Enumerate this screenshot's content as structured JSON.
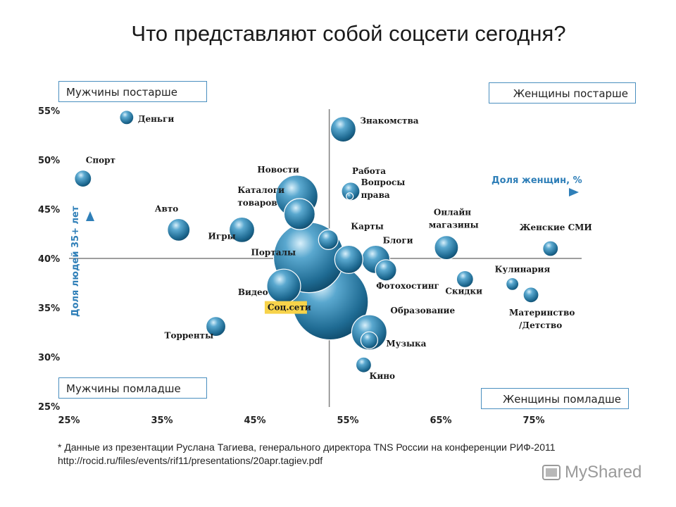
{
  "title": "Что представляют собой соцсети сегодня?",
  "quadrants": {
    "top_left": "Мужчины постарше",
    "top_right": "Женщины постарше",
    "bottom_left": "Мужчины помладше",
    "bottom_right": "Женщины помладше"
  },
  "footnote": "* Данные из презентации Руслана Тагиева, генерального директора TNS России на конференции РИФ-2011  http://rocid.ru/files/events/rif11/presentations/20apr.tagiev.pdf",
  "watermark": "MyShared",
  "chart_data": {
    "type": "scatter",
    "title": "Что представляют собой соцсети сегодня?",
    "xlabel": "Доля женщин, %",
    "ylabel": "Доля людей 35+ лет",
    "xlim": [
      25,
      80
    ],
    "ylim": [
      25,
      55
    ],
    "x_ticks": [
      "25%",
      "35%",
      "45%",
      "55%",
      "65%",
      "75%"
    ],
    "y_ticks": [
      "25%",
      "30%",
      "35%",
      "40%",
      "45%",
      "50%",
      "55%"
    ],
    "crosshair": {
      "x": 53,
      "y": 40
    },
    "colors": {
      "bubble": "#2f7fa6",
      "bubble_dark": "#0f4f70",
      "arrow": "#3a86b8",
      "highlight": "#f7d34a"
    },
    "points": [
      {
        "label": "Деньги",
        "x": 31.2,
        "y": 54.3,
        "size": 10
      },
      {
        "label": "Знакомства",
        "x": 54.5,
        "y": 53.1,
        "size": 18
      },
      {
        "label": "Спорт",
        "x": 26.5,
        "y": 48.1,
        "size": 12
      },
      {
        "label": "Работа",
        "x": 55.3,
        "y": 46.8,
        "size": 13
      },
      {
        "label": "Вопросы права",
        "x": 55.2,
        "y": 46.3,
        "size": 5
      },
      {
        "label": "Новости",
        "x": 49.5,
        "y": 46.3,
        "size": 30
      },
      {
        "label": "Каталоги товаров",
        "x": 49.8,
        "y": 44.5,
        "size": 22
      },
      {
        "label": "Авто",
        "x": 36.8,
        "y": 42.9,
        "size": 16
      },
      {
        "label": "Игры",
        "x": 43.6,
        "y": 42.9,
        "size": 18
      },
      {
        "label": "Порталы",
        "x": 50.8,
        "y": 40.1,
        "size": 50
      },
      {
        "label": "Карты",
        "x": 52.9,
        "y": 41.9,
        "size": 14
      },
      {
        "label": "Онлайн магазины",
        "x": 65.6,
        "y": 41.1,
        "size": 17
      },
      {
        "label": "Женские СМИ",
        "x": 76.8,
        "y": 41.0,
        "size": 11
      },
      {
        "label": "Блоги",
        "x": 58.0,
        "y": 39.9,
        "size": 20
      },
      {
        "label": "",
        "x": 55.1,
        "y": 39.9,
        "size": 20
      },
      {
        "label": "Фотохостинг",
        "x": 59.1,
        "y": 38.8,
        "size": 15
      },
      {
        "label": "Скидки",
        "x": 67.6,
        "y": 37.9,
        "size": 12
      },
      {
        "label": "Кулинария",
        "x": 72.7,
        "y": 37.4,
        "size": 9
      },
      {
        "label": "Видео",
        "x": 48.1,
        "y": 37.2,
        "size": 24
      },
      {
        "label": "Материнство /Детство",
        "x": 74.7,
        "y": 36.3,
        "size": 11
      },
      {
        "label": "Соц.сети",
        "x": 53.1,
        "y": 35.6,
        "size": 54,
        "highlight": true
      },
      {
        "label": "Образование",
        "x": 57.3,
        "y": 32.5,
        "size": 25
      },
      {
        "label": "Торренты",
        "x": 40.8,
        "y": 33.1,
        "size": 14
      },
      {
        "label": "Музыка",
        "x": 57.3,
        "y": 31.7,
        "size": 12
      },
      {
        "label": "Кино",
        "x": 56.7,
        "y": 29.2,
        "size": 11
      }
    ]
  }
}
